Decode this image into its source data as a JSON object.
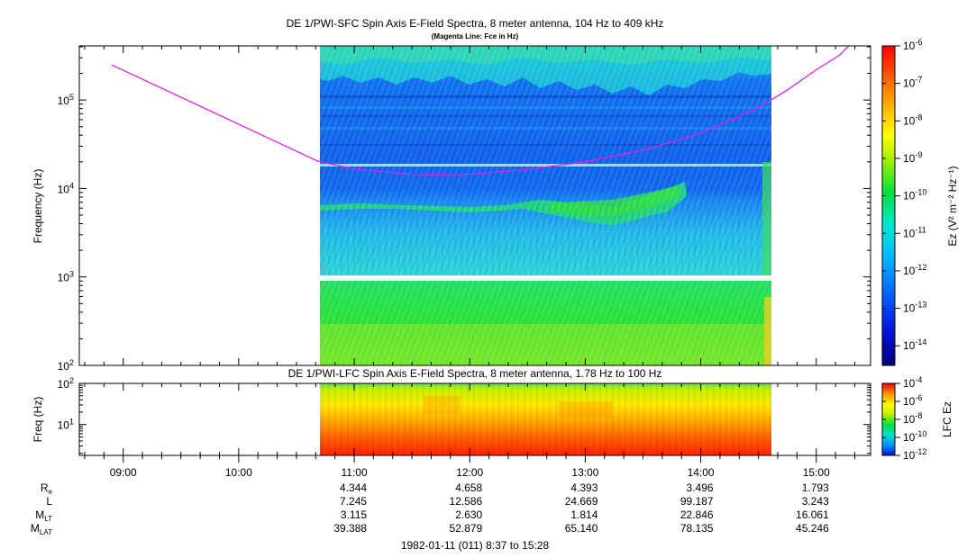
{
  "chart_data": [
    {
      "type": "heatmap",
      "panel": "SFC",
      "title": "DE 1/PWI-SFC  Spin Axis E-Field Spectra, 8 meter antenna, 104 Hz to 409 kHz",
      "subtitle": "(Magenta Line: Fce in Hz)",
      "ylabel": "Frequency (Hz)",
      "yscale": "log",
      "ylim": [
        100,
        409000
      ],
      "y_ticks": [
        {
          "base": "10",
          "exp": "2"
        },
        {
          "base": "10",
          "exp": "3"
        },
        {
          "base": "10",
          "exp": "4"
        },
        {
          "base": "10",
          "exp": "5"
        }
      ],
      "data_coverage_ut": [
        "10:41",
        "14:36"
      ],
      "colorbar": {
        "label": "Ez (V² m⁻² Hz⁻¹)",
        "scale": "log",
        "range": [
          3e-15,
          1e-06
        ],
        "ticks": [
          {
            "base": "10",
            "exp": "-6"
          },
          {
            "base": "10",
            "exp": "-7"
          },
          {
            "base": "10",
            "exp": "-8"
          },
          {
            "base": "10",
            "exp": "-9"
          },
          {
            "base": "10",
            "exp": "-10"
          },
          {
            "base": "10",
            "exp": "-11"
          },
          {
            "base": "10",
            "exp": "-12"
          },
          {
            "base": "10",
            "exp": "-13"
          },
          {
            "base": "10",
            "exp": "-14"
          }
        ]
      },
      "series": [
        {
          "name": "Fce",
          "color": "#e020e0",
          "x_ut_hours": [
            8.9,
            10.68,
            11.0,
            11.5,
            11.75,
            12.0,
            12.5,
            13.0,
            13.5,
            14.0,
            14.5,
            14.75,
            15.0,
            15.2,
            15.28
          ],
          "y_hz": [
            250000,
            20500,
            16500,
            14400,
            14200,
            14500,
            16400,
            20000,
            27000,
            42000,
            82000,
            130000,
            220000,
            320000,
            409000
          ]
        }
      ]
    },
    {
      "type": "heatmap",
      "panel": "LFC",
      "title": "DE 1/PWI-LFC  Spin Axis E-Field Spectra, 8 meter antenna, 1.78 Hz to 100 Hz",
      "ylabel": "Freq (Hz)",
      "yscale": "log",
      "ylim": [
        1.78,
        100
      ],
      "y_ticks": [
        {
          "base": "10",
          "exp": "1"
        },
        {
          "base": "10",
          "exp": "2"
        }
      ],
      "data_coverage_ut": [
        "10:41",
        "14:36"
      ],
      "colorbar": {
        "label": "LFC Ez",
        "scale": "log",
        "range": [
          1e-12,
          0.0001
        ],
        "ticks": [
          {
            "base": "10",
            "exp": "-4"
          },
          {
            "base": "10",
            "exp": "-6"
          },
          {
            "base": "10",
            "exp": "-8"
          },
          {
            "base": "10",
            "exp": "-10"
          },
          {
            "base": "10",
            "exp": "-12"
          }
        ]
      }
    }
  ],
  "x_axis": {
    "xlim_ut_hours": [
      8.62,
      15.47
    ],
    "tick_labels": [
      "09:00",
      "10:00",
      "11:00",
      "12:00",
      "13:00",
      "14:00",
      "15:00"
    ]
  },
  "ephemeris": {
    "rows": [
      {
        "label": "R",
        "sub": "e",
        "values": [
          "4.344",
          "4.658",
          "4.393",
          "3.496",
          "1.793"
        ]
      },
      {
        "label": "L",
        "sub": "",
        "values": [
          "7.245",
          "12.586",
          "24.669",
          "99.187",
          "3.243"
        ]
      },
      {
        "label": "M",
        "sub": "LT",
        "values": [
          "3.115",
          "2.630",
          "1.814",
          "22.846",
          "16.061"
        ]
      },
      {
        "label": "M",
        "sub": "LAT",
        "values": [
          "39.388",
          "52.879",
          "65.140",
          "78.135",
          "45.246"
        ]
      }
    ]
  },
  "footer": "1982-01-11 (011) 8:37 to 15:28"
}
